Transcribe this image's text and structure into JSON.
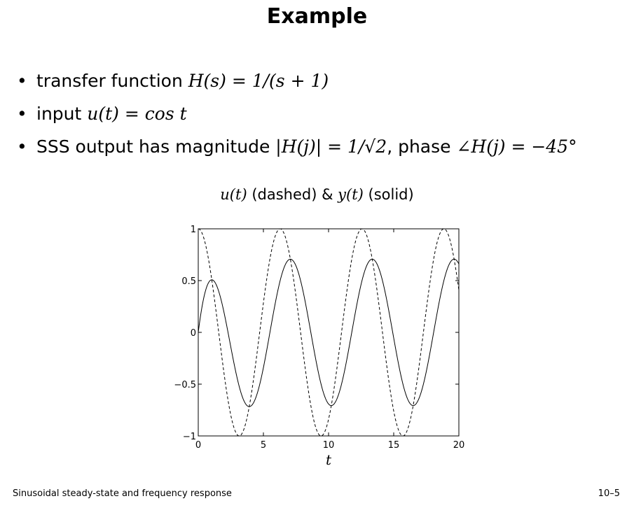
{
  "slide": {
    "title": "Example",
    "bullets": [
      {
        "text": "transfer function ",
        "math": "H(s) = 1/(s + 1)"
      },
      {
        "text": "input ",
        "math": "u(t) = cos t"
      },
      {
        "text": "SSS output has magnitude ",
        "math": "|H(j)| = 1/√2",
        "text2": ", phase ",
        "math2": "∠H(j) = −45°"
      }
    ],
    "footer_left": "Sinusoidal steady-state and frequency response",
    "footer_right": "10–5"
  },
  "chart_data": {
    "type": "line",
    "title_parts": {
      "u": "u(t)",
      "dashed": " (dashed) & ",
      "y": "y(t)",
      "solid": " (solid)"
    },
    "xlabel": "t",
    "ylabel": "",
    "xlim": [
      0,
      20
    ],
    "ylim": [
      -1,
      1
    ],
    "xticks": [
      0,
      5,
      10,
      15,
      20
    ],
    "yticks": [
      1,
      0.5,
      0,
      -0.5,
      -1
    ],
    "ytick_labels": [
      "1",
      "0.5",
      "0",
      "−0.5",
      "−1"
    ],
    "grid": false,
    "series": [
      {
        "style": "dashed",
        "formula": "cos(t)"
      },
      {
        "style": "solid",
        "formula": "0.5*(cos(t) + sin(t) - exp(-t))"
      }
    ]
  }
}
